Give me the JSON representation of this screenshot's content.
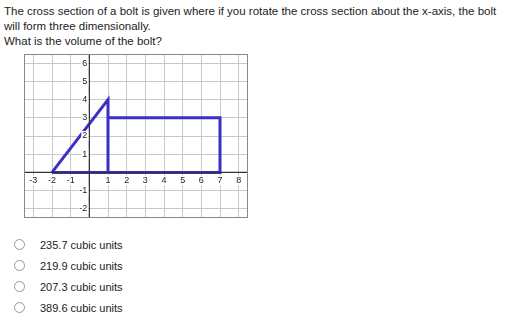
{
  "question": {
    "text": "The cross section of a bolt is given where if you rotate the cross section about the x-axis, the bolt will form three dimensionally.",
    "prompt": "What is the volume of the bolt?"
  },
  "chart_data": {
    "type": "scatter",
    "color": "#3a2fc8",
    "line_style": "solid",
    "x": [
      -2,
      1,
      1,
      1,
      7,
      7,
      -2
    ],
    "values": [
      0,
      4,
      0,
      3,
      3,
      0,
      0
    ],
    "xlim": [
      -3.5,
      8.5
    ],
    "xticks": [
      -3,
      -2,
      -1,
      1,
      2,
      3,
      4,
      5,
      6,
      7,
      8
    ],
    "ylim": [
      -2.5,
      6.5
    ],
    "yticks": [
      -2,
      -1,
      1,
      2,
      3,
      4,
      5,
      6
    ],
    "grid": true
  },
  "choices": [
    "235.7 cubic units",
    "219.9 cubic units",
    "207.3 cubic units",
    "389.6 cubic units"
  ]
}
